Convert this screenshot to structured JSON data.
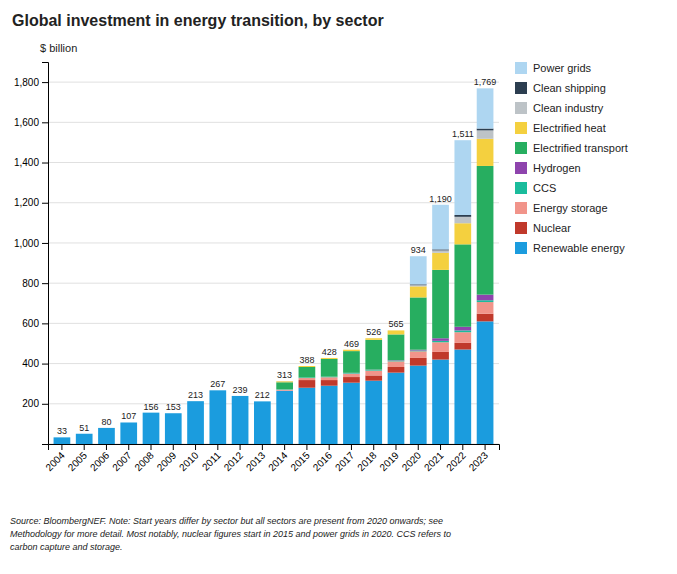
{
  "chart_data": {
    "type": "bar",
    "stacked": true,
    "title": "Global investment in energy transition, by sector",
    "ylabel": "$ billion",
    "annotations": [
      "Source: BloombergNEF. Note: Start years differ by sector but all sectors are present from 2020 onwards; see",
      "Methodology for more detail. Most notably, nuclear figures start in 2015 and power grids in 2020. CCS refers to",
      "carbon capture and storage."
    ],
    "categories": [
      "2004",
      "2005",
      "2006",
      "2007",
      "2008",
      "2009",
      "2010",
      "2011",
      "2012",
      "2013",
      "2014",
      "2015",
      "2016",
      "2017",
      "2018",
      "2019",
      "2020",
      "2021",
      "2022",
      "2023"
    ],
    "series": [
      {
        "name": "Renewable energy",
        "color": "#1B9CDE",
        "values": [
          33,
          51,
          80,
          107,
          156,
          153,
          213,
          267,
          239,
          212,
          265,
          280,
          290,
          305,
          315,
          355,
          390,
          420,
          470,
          610
        ]
      },
      {
        "name": "Nuclear",
        "color": "#C0392B",
        "values": [
          0,
          0,
          0,
          0,
          0,
          0,
          0,
          0,
          0,
          0,
          0,
          38,
          28,
          28,
          26,
          28,
          38,
          38,
          33,
          38
        ]
      },
      {
        "name": "Energy storage",
        "color": "#F1948A",
        "values": [
          0,
          0,
          0,
          0,
          0,
          0,
          0,
          0,
          0,
          0,
          5,
          10,
          14,
          17,
          24,
          28,
          33,
          48,
          53,
          58
        ]
      },
      {
        "name": "CCS",
        "color": "#1ABC9C",
        "values": [
          0,
          0,
          0,
          0,
          0,
          0,
          0,
          0,
          0,
          0,
          2,
          3,
          3,
          3,
          4,
          4,
          4,
          7,
          9,
          9
        ]
      },
      {
        "name": "Hydrogen",
        "color": "#8E44AD",
        "values": [
          0,
          0,
          0,
          0,
          0,
          0,
          0,
          0,
          0,
          0,
          0,
          0,
          0,
          1,
          1,
          2,
          4,
          13,
          18,
          28
        ]
      },
      {
        "name": "Electrified transport",
        "color": "#27AE60",
        "values": [
          0,
          0,
          0,
          0,
          0,
          0,
          0,
          0,
          0,
          0,
          35,
          52,
          88,
          108,
          148,
          128,
          260,
          340,
          410,
          640
        ]
      },
      {
        "name": "Electrified heat",
        "color": "#F4D03F",
        "values": [
          0,
          0,
          0,
          0,
          0,
          0,
          0,
          0,
          0,
          0,
          5,
          5,
          5,
          7,
          8,
          20,
          55,
          85,
          105,
          135
        ]
      },
      {
        "name": "Clean industry",
        "color": "#BDC3C7",
        "values": [
          0,
          0,
          0,
          0,
          0,
          0,
          0,
          0,
          0,
          0,
          1,
          0,
          0,
          0,
          0,
          0,
          6,
          12,
          32,
          42
        ]
      },
      {
        "name": "Clean shipping",
        "color": "#2C3E50",
        "values": [
          0,
          0,
          0,
          0,
          0,
          0,
          0,
          0,
          0,
          0,
          0,
          0,
          0,
          0,
          0,
          0,
          4,
          5,
          9,
          9
        ]
      },
      {
        "name": "Power grids",
        "color": "#AED6F1",
        "values": [
          0,
          0,
          0,
          0,
          0,
          0,
          0,
          0,
          0,
          0,
          0,
          0,
          0,
          0,
          0,
          0,
          140,
          222,
          372,
          200
        ]
      }
    ],
    "totals": [
      33,
      51,
      80,
      107,
      156,
      153,
      213,
      267,
      239,
      212,
      313,
      388,
      428,
      469,
      526,
      565,
      934,
      1190,
      1511,
      1769
    ],
    "total_labels": [
      "33",
      "51",
      "80",
      "107",
      "156",
      "153",
      "213",
      "267",
      "239",
      "212",
      "313",
      "388",
      "428",
      "469",
      "526",
      "565",
      "934",
      "1,190",
      "1,511",
      "1,769"
    ],
    "ylim": [
      0,
      1900
    ],
    "yticks": [
      {
        "value": 0,
        "label": null
      },
      200,
      400,
      600,
      800,
      {
        "value": 1000,
        "label": "1,000"
      },
      {
        "value": 1200,
        "label": "1,200"
      },
      {
        "value": 1400,
        "label": "1,400"
      },
      {
        "value": 1600,
        "label": "1,600"
      },
      {
        "value": 1800,
        "label": "1,800"
      }
    ],
    "grid": true,
    "legend": "right"
  }
}
